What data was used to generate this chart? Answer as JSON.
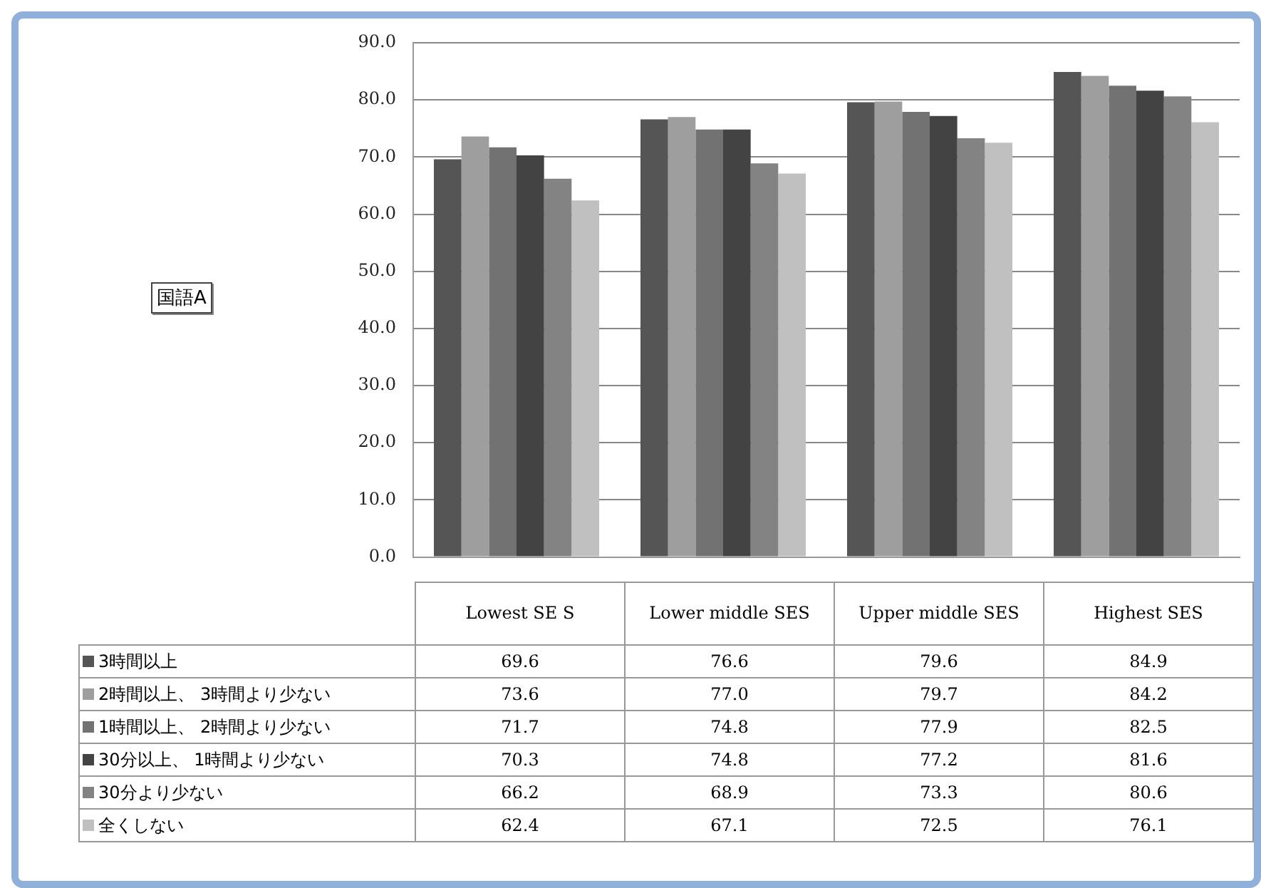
{
  "chart_data": {
    "type": "bar",
    "annotations": [
      "国語A"
    ],
    "categories": [
      "Lowest SE S",
      "Lower middle SES",
      "Upper middle SES",
      "Highest SES"
    ],
    "series": [
      {
        "name": "3時間以上",
        "color": "#555555",
        "values": [
          69.6,
          76.6,
          79.6,
          84.9
        ],
        "value_labels": [
          "69.6",
          "76.6",
          "79.6",
          "84.9"
        ]
      },
      {
        "name": "2時間以上、 3時間より少ない",
        "color": "#9e9e9e",
        "values": [
          73.6,
          77.0,
          79.7,
          84.2
        ],
        "value_labels": [
          "73.6",
          "77.0",
          "79.7",
          "84.2"
        ]
      },
      {
        "name": "1時間以上、 2時間より少ない",
        "color": "#727272",
        "values": [
          71.7,
          74.8,
          77.9,
          82.5
        ],
        "value_labels": [
          "71.7",
          "74.8",
          "77.9",
          "82.5"
        ]
      },
      {
        "name": "30分以上、 1時間より少ない",
        "color": "#434343",
        "values": [
          70.3,
          74.8,
          77.2,
          81.6
        ],
        "value_labels": [
          "70.3",
          "74.8",
          "77.2",
          "81.6"
        ]
      },
      {
        "name": "30分より少ない",
        "color": "#838383",
        "values": [
          66.2,
          68.9,
          73.3,
          80.6
        ],
        "value_labels": [
          "66.2",
          "68.9",
          "73.3",
          "80.6"
        ]
      },
      {
        "name": "全くしない",
        "color": "#c0c0c0",
        "values": [
          62.4,
          67.1,
          72.5,
          76.1
        ],
        "value_labels": [
          "62.4",
          "67.1",
          "72.5",
          "76.1"
        ]
      }
    ],
    "ylim": [
      0,
      90
    ],
    "yticks": [
      {
        "value": 0,
        "label": "0.0"
      },
      {
        "value": 10,
        "label": "10.0"
      },
      {
        "value": 20,
        "label": "20.0"
      },
      {
        "value": 30,
        "label": "30.0"
      },
      {
        "value": 40,
        "label": "40.0"
      },
      {
        "value": 50,
        "label": "50.0"
      },
      {
        "value": 60,
        "label": "60.0"
      },
      {
        "value": 70,
        "label": "70.0"
      },
      {
        "value": 80,
        "label": "80.0"
      },
      {
        "value": 90,
        "label": "90.0"
      }
    ],
    "grid": "y",
    "legend": "bottom left"
  }
}
